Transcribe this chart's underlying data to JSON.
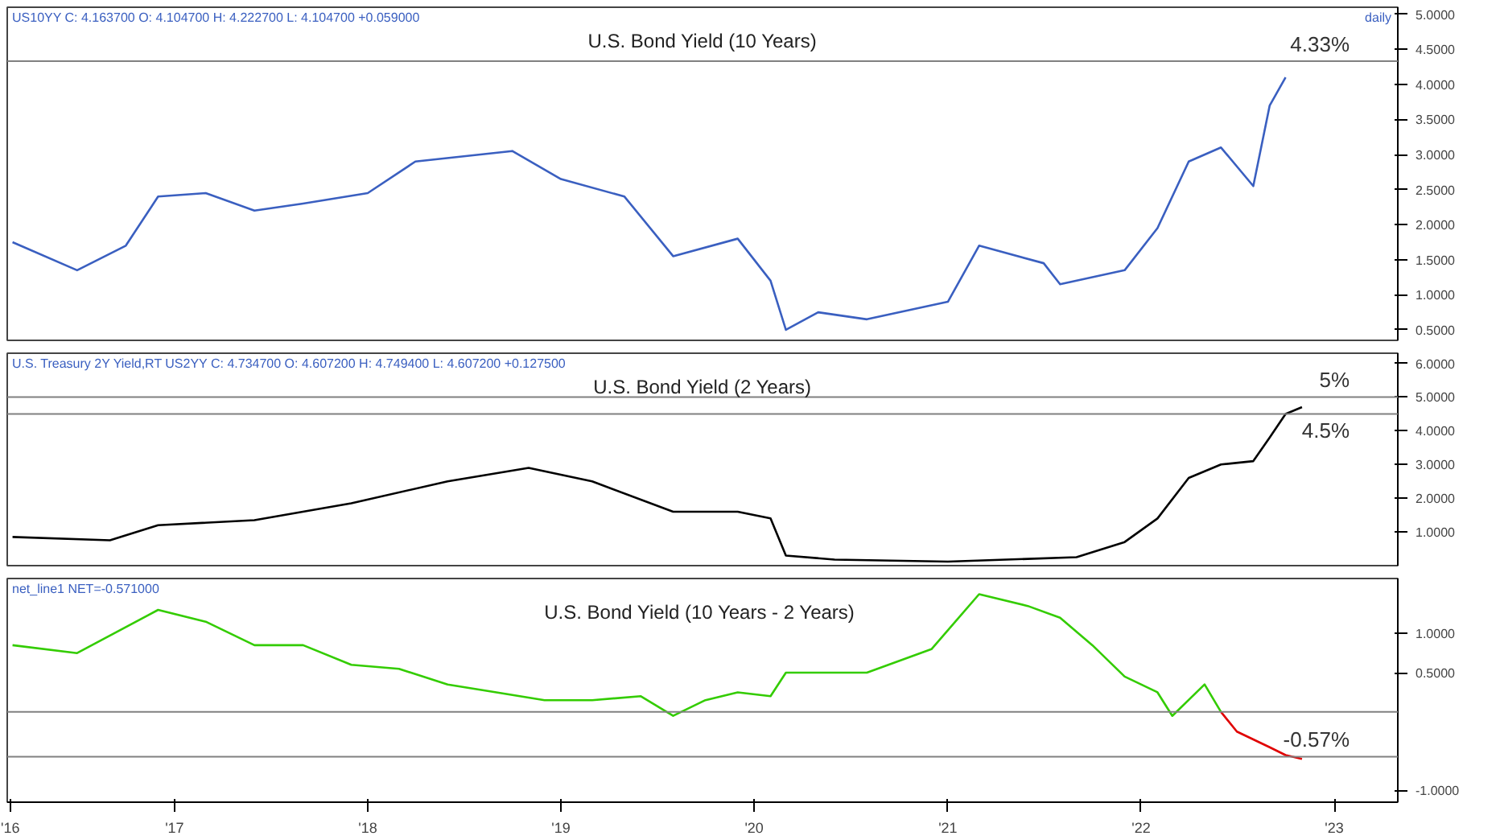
{
  "chart_data": [
    {
      "type": "line",
      "title": "U.S. Bond Yield (10 Years)",
      "subtitle": "US10YY C: 4.163700 O: 4.104700 H: 4.222700 L: 4.104700 +0.059000",
      "annotations": [
        "daily"
      ],
      "xlim": [
        "2016-02-20",
        "2023-05-01"
      ],
      "ylim": [
        0.35,
        5.1
      ],
      "yticks": [
        {
          "value": 0.5,
          "label": "0.5000"
        },
        {
          "value": 1.0,
          "label": "1.0000"
        },
        {
          "value": 1.5,
          "label": "1.5000"
        },
        {
          "value": 2.0,
          "label": "2.0000"
        },
        {
          "value": 2.5,
          "label": "2.5000"
        },
        {
          "value": 3.0,
          "label": "3.0000"
        },
        {
          "value": 3.5,
          "label": "3.5000"
        },
        {
          "value": 4.0,
          "label": "4.0000"
        },
        {
          "value": 4.5,
          "label": "4.5000"
        },
        {
          "value": 5.0,
          "label": "5.0000"
        }
      ],
      "tick_labels": "y",
      "grid": false,
      "ref_lines": [
        {
          "axis": "y",
          "value": 4.33,
          "label": "4.33%",
          "color": "#808080"
        }
      ],
      "series": [
        {
          "color": "#3a5fc0",
          "x": [
            "2016-03",
            "2016-07",
            "2016-10",
            "2016-12",
            "2017-03",
            "2017-06",
            "2017-09",
            "2018-01",
            "2018-04",
            "2018-10",
            "2019-01",
            "2019-05",
            "2019-08",
            "2019-12",
            "2020-02",
            "2020-03",
            "2020-05",
            "2020-08",
            "2021-01",
            "2021-03",
            "2021-07",
            "2021-08",
            "2021-12",
            "2022-02",
            "2022-04",
            "2022-06",
            "2022-08",
            "2022-09",
            "2022-10"
          ],
          "values": [
            1.75,
            1.35,
            1.7,
            2.4,
            2.45,
            2.2,
            2.3,
            2.45,
            2.9,
            3.05,
            2.65,
            2.4,
            1.55,
            1.8,
            1.2,
            0.5,
            0.75,
            0.65,
            0.9,
            1.7,
            1.45,
            1.15,
            1.35,
            1.95,
            2.9,
            3.1,
            2.55,
            3.7,
            4.1
          ]
        }
      ]
    },
    {
      "type": "line",
      "title": "U.S. Bond Yield (2 Years)",
      "subtitle": "U.S. Treasury 2Y Yield,RT US2YY C: 4.734700 O: 4.607200 H: 4.749400 L: 4.607200 +0.127500",
      "xlim": [
        "2016-02-20",
        "2023-05-01"
      ],
      "ylim": [
        0,
        6.3
      ],
      "yticks": [
        {
          "value": 1,
          "label": "1.0000"
        },
        {
          "value": 2,
          "label": "2.0000"
        },
        {
          "value": 3,
          "label": "3.0000"
        },
        {
          "value": 4,
          "label": "4.0000"
        },
        {
          "value": 5,
          "label": "5.0000"
        },
        {
          "value": 6,
          "label": "6.0000"
        }
      ],
      "tick_labels": "y",
      "grid": false,
      "ref_lines": [
        {
          "axis": "y",
          "value": 5,
          "label": "5%",
          "color": "#808080"
        },
        {
          "axis": "y",
          "value": 4.5,
          "label": "4.5%",
          "color": "#808080"
        }
      ],
      "series": [
        {
          "color": "#000000",
          "x": [
            "2016-03",
            "2016-09",
            "2016-12",
            "2017-06",
            "2017-12",
            "2018-06",
            "2018-11",
            "2019-03",
            "2019-08",
            "2019-12",
            "2020-02",
            "2020-03",
            "2020-06",
            "2021-01",
            "2021-06",
            "2021-09",
            "2021-12",
            "2022-02",
            "2022-04",
            "2022-06",
            "2022-08",
            "2022-09",
            "2022-10",
            "2022-11"
          ],
          "values": [
            0.85,
            0.75,
            1.2,
            1.35,
            1.85,
            2.5,
            2.9,
            2.5,
            1.6,
            1.6,
            1.4,
            0.3,
            0.18,
            0.12,
            0.2,
            0.25,
            0.7,
            1.4,
            2.6,
            3.0,
            3.1,
            3.8,
            4.5,
            4.7
          ]
        }
      ]
    },
    {
      "type": "line",
      "title": "U.S. Bond Yield (10 Years -  2 Years)",
      "subtitle": "net_line1 NET=-0.571000",
      "xlim": [
        "2016-02-20",
        "2023-05-01"
      ],
      "xticks": [
        {
          "value": "2016-02-25",
          "label": "'16"
        },
        {
          "value": "2017-01-01",
          "label": "'17"
        },
        {
          "value": "2018-01-01",
          "label": "'18"
        },
        {
          "value": "2019-01-01",
          "label": "'19"
        },
        {
          "value": "2020-01-01",
          "label": "'20"
        },
        {
          "value": "2021-01-01",
          "label": "'21"
        },
        {
          "value": "2022-01-01",
          "label": "'22"
        },
        {
          "value": "2023-01-01",
          "label": "'23"
        }
      ],
      "ylim": [
        -1.15,
        1.7
      ],
      "yticks": [
        {
          "value": -1.0,
          "label": "-1.0000"
        },
        {
          "value": 0.5,
          "label": "0.5000"
        },
        {
          "value": 1.0,
          "label": "1.0000"
        }
      ],
      "grid": false,
      "ref_lines": [
        {
          "axis": "y",
          "value": 0,
          "color": "#808080"
        },
        {
          "axis": "y",
          "value": -0.57,
          "label": "-0.57%",
          "color": "#808080"
        }
      ],
      "series": [
        {
          "color": "#33cc00",
          "x": [
            "2016-03",
            "2016-07",
            "2016-12",
            "2017-03",
            "2017-06",
            "2017-09",
            "2017-12",
            "2018-03",
            "2018-06",
            "2018-09",
            "2018-12",
            "2019-03",
            "2019-06",
            "2019-08",
            "2019-10",
            "2019-12",
            "2020-02",
            "2020-03",
            "2020-08",
            "2020-12",
            "2021-03",
            "2021-06",
            "2021-08",
            "2021-10",
            "2021-12",
            "2022-02",
            "2022-03",
            "2022-05",
            "2022-06"
          ],
          "values": [
            0.85,
            0.75,
            1.3,
            1.15,
            0.85,
            0.85,
            0.6,
            0.55,
            0.35,
            0.25,
            0.15,
            0.15,
            0.2,
            -0.05,
            0.15,
            0.25,
            0.2,
            0.5,
            0.5,
            0.8,
            1.5,
            1.35,
            1.2,
            0.85,
            0.45,
            0.25,
            -0.05,
            0.35,
            0.0
          ]
        },
        {
          "color": "#e00000",
          "x": [
            "2022-06",
            "2022-07",
            "2022-09",
            "2022-10",
            "2022-11"
          ],
          "values": [
            0.0,
            -0.25,
            -0.45,
            -0.55,
            -0.6
          ]
        }
      ]
    }
  ]
}
